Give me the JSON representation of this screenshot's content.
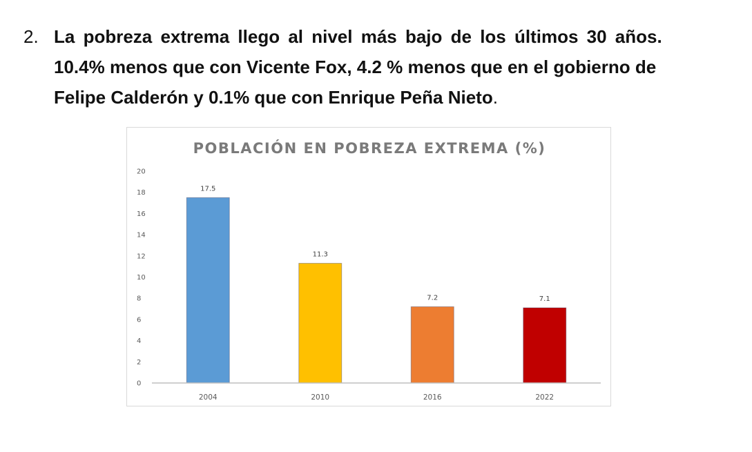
{
  "heading": {
    "number": "2.",
    "line1": "La pobreza extrema llego al nivel más bajo de los últimos 30 años.",
    "line2": "10.4% menos que con Vicente Fox, 4.2 % menos que en el gobierno de",
    "line3_main": "Felipe Calderón y 0.1% que con Enrique Peña Nieto",
    "line3_end": "."
  },
  "chart_data": {
    "type": "bar",
    "title": "POBLACIÓN EN POBREZA EXTREMA (%)",
    "xlabel": "",
    "ylabel": "",
    "categories": [
      "2004",
      "2010",
      "2016",
      "2022"
    ],
    "values": [
      17.5,
      11.3,
      7.2,
      7.1
    ],
    "data_labels": [
      "17.5",
      "11.3",
      "7.2",
      "7.1"
    ],
    "colors": [
      "#5B9BD5",
      "#FFC000",
      "#ED7D31",
      "#C00000"
    ],
    "ylim": [
      0,
      20
    ],
    "yticks": [
      "0",
      "2",
      "4",
      "6",
      "8",
      "10",
      "12",
      "14",
      "16",
      "18",
      "20"
    ],
    "grid": false,
    "legend": "none"
  }
}
